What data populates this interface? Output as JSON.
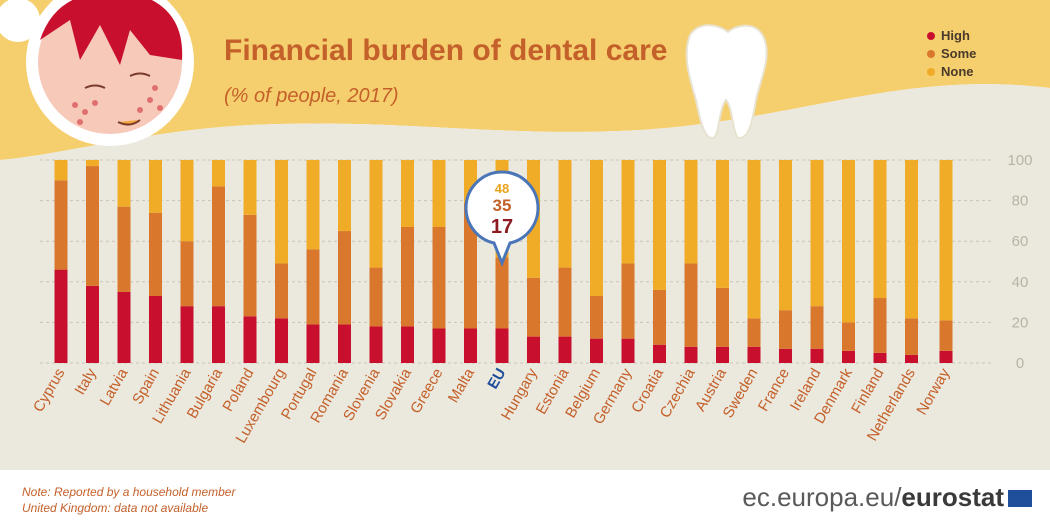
{
  "chart_data": {
    "type": "bar",
    "stacked": true,
    "title": "Financial burden of dental care",
    "subtitle": "(% of people, 2017)",
    "categories": [
      "Cyprus",
      "Italy",
      "Latvia",
      "Spain",
      "Lithuania",
      "Bulgaria",
      "Poland",
      "Luxembourg",
      "Portugal",
      "Romania",
      "Slovenia",
      "Slovakia",
      "Greece",
      "Malta",
      "EU",
      "Hungary",
      "Estonia",
      "Belgium",
      "Germany",
      "Croatia",
      "Czechia",
      "Austria",
      "Sweden",
      "France",
      "Ireland",
      "Denmark",
      "Finland",
      "Netherlands",
      "Norway"
    ],
    "series": [
      {
        "name": "High",
        "color": "#c8102e",
        "values": [
          46,
          38,
          35,
          33,
          28,
          28,
          23,
          22,
          19,
          19,
          18,
          18,
          17,
          17,
          17,
          13,
          13,
          12,
          12,
          9,
          8,
          8,
          8,
          7,
          7,
          6,
          5,
          4,
          6
        ]
      },
      {
        "name": "Some",
        "color": "#d9782d",
        "values": [
          44,
          59,
          42,
          41,
          32,
          59,
          50,
          27,
          37,
          46,
          29,
          49,
          50,
          62,
          35,
          29,
          34,
          21,
          37,
          27,
          41,
          29,
          14,
          19,
          21,
          14,
          27,
          18,
          15
        ]
      },
      {
        "name": "None",
        "color": "#f0ac26",
        "values": [
          10,
          3,
          23,
          26,
          40,
          13,
          27,
          51,
          44,
          35,
          53,
          33,
          33,
          21,
          48,
          58,
          53,
          67,
          51,
          64,
          51,
          63,
          78,
          74,
          72,
          80,
          68,
          78,
          79
        ]
      }
    ],
    "ylim": [
      0,
      100
    ],
    "yticks": [
      0,
      20,
      40,
      60,
      80,
      100
    ],
    "legend_position": "top-right",
    "highlight": {
      "category": "EU",
      "labels": [
        "48",
        "35",
        "17"
      ]
    }
  },
  "notes": [
    "Note: Reported by a household member",
    "United Kingdom: data not available"
  ],
  "credit": {
    "site": "ec.europa.eu/",
    "brand": "eurostat"
  },
  "colors": {
    "background_band": "#f5cf6e",
    "plot_bg": "#ebe8de",
    "title": "#c4602a",
    "label": "#c4602a",
    "eu_label": "#1f4e9a",
    "tick": "#b8b3a6"
  }
}
